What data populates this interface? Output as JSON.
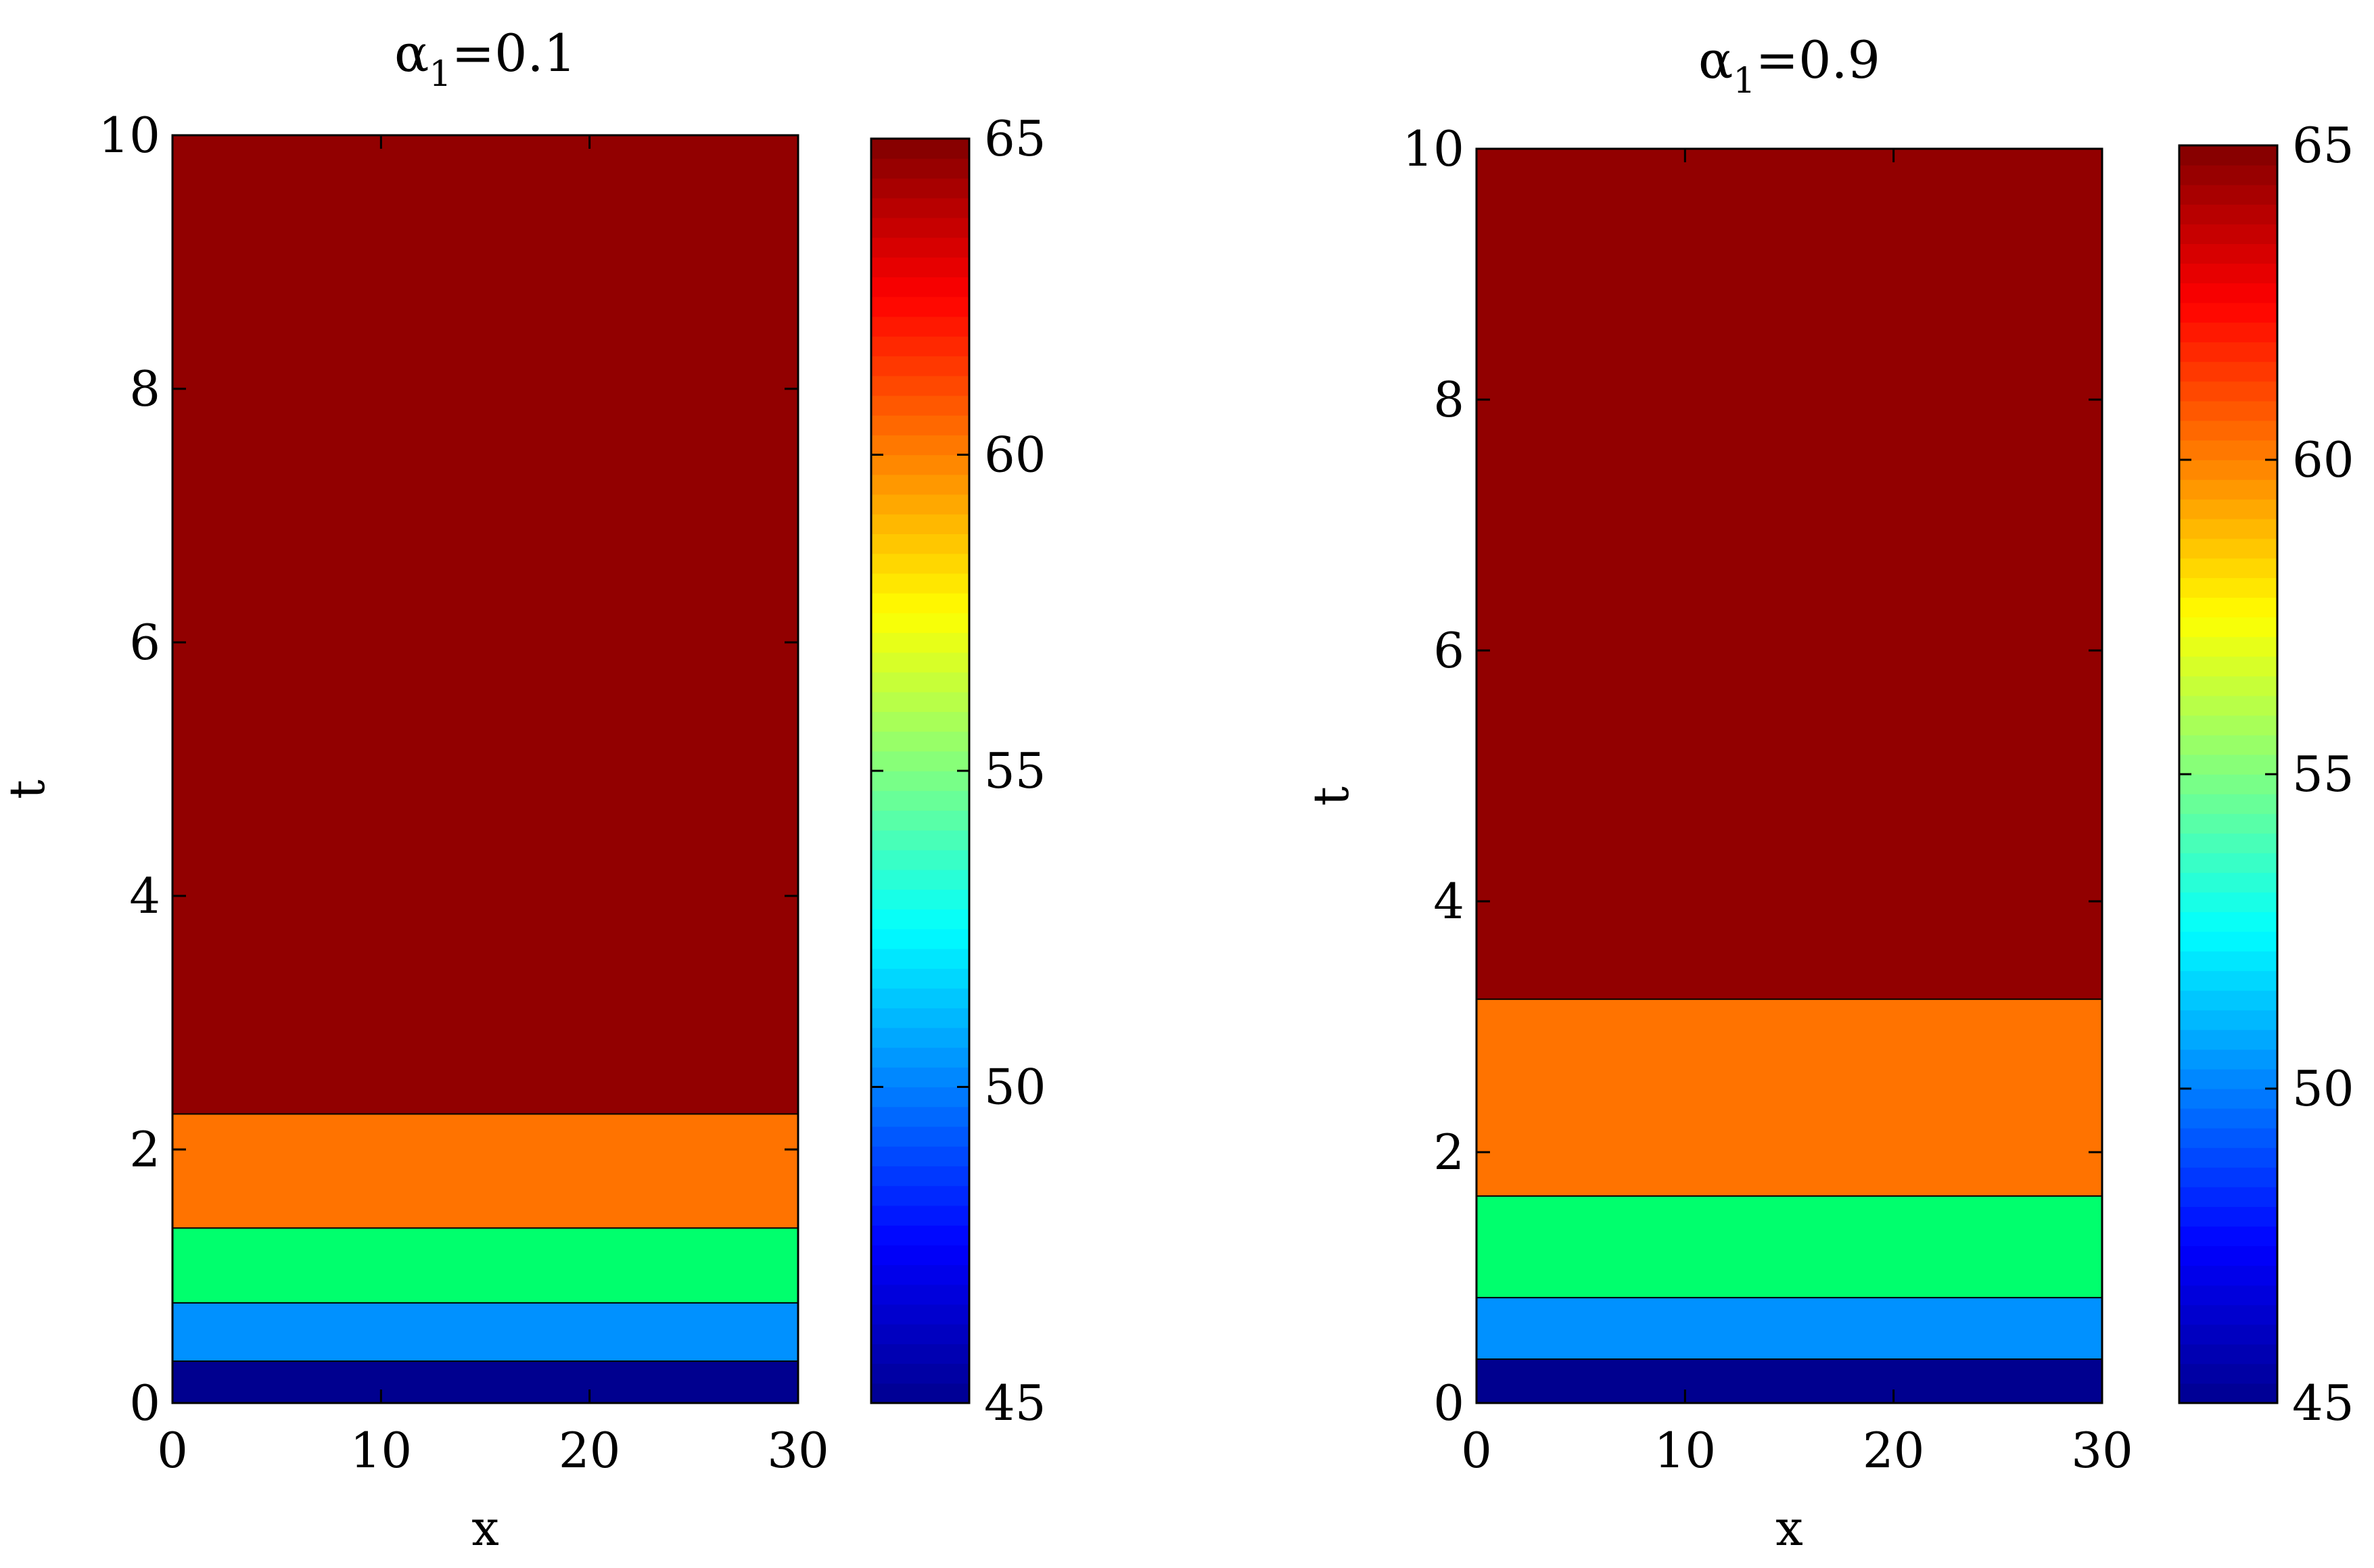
{
  "chart_data": [
    {
      "type": "heatmap",
      "subtype": "filled-contour",
      "title": "α1=0.1",
      "title_greek": "α",
      "title_subscript": "1",
      "title_rest": "=0.1",
      "xlabel": "x",
      "ylabel": "t",
      "xlim": [
        0,
        30
      ],
      "ylim": [
        0,
        10
      ],
      "xticks": [
        0,
        10,
        20,
        30
      ],
      "yticks": [
        0,
        2,
        4,
        6,
        8,
        10
      ],
      "bands": [
        {
          "t_from": 0.0,
          "t_to": 0.33,
          "value": 46,
          "color": "#00008F"
        },
        {
          "t_from": 0.33,
          "t_to": 0.79,
          "value": 50.6,
          "color": "#0091FF"
        },
        {
          "t_from": 0.79,
          "t_to": 1.38,
          "value": 55.2,
          "color": "#00FF6D"
        },
        {
          "t_from": 1.38,
          "t_to": 2.28,
          "value": 60.5,
          "color": "#FF7300"
        },
        {
          "t_from": 2.28,
          "t_to": 10.0,
          "value": 65,
          "color": "#920000"
        }
      ],
      "colorbar": {
        "min": 45,
        "max": 65,
        "ticks": [
          45,
          50,
          55,
          60,
          65
        ]
      }
    },
    {
      "type": "heatmap",
      "subtype": "filled-contour",
      "title": "α1=0.9",
      "title_greek": "α",
      "title_subscript": "1",
      "title_rest": "=0.9",
      "xlabel": "x",
      "ylabel": "t",
      "xlim": [
        0,
        30
      ],
      "ylim": [
        0,
        10
      ],
      "xticks": [
        0,
        10,
        20,
        30
      ],
      "yticks": [
        0,
        2,
        4,
        6,
        8,
        10
      ],
      "bands": [
        {
          "t_from": 0.0,
          "t_to": 0.35,
          "value": 46,
          "color": "#00008F"
        },
        {
          "t_from": 0.35,
          "t_to": 0.84,
          "value": 50.6,
          "color": "#0091FF"
        },
        {
          "t_from": 0.84,
          "t_to": 1.65,
          "value": 55.2,
          "color": "#00FF6D"
        },
        {
          "t_from": 1.65,
          "t_to": 3.22,
          "value": 60.5,
          "color": "#FF7300"
        },
        {
          "t_from": 3.22,
          "t_to": 10.0,
          "value": 65,
          "color": "#920000"
        }
      ],
      "colorbar": {
        "min": 45,
        "max": 65,
        "ticks": [
          45,
          50,
          55,
          60,
          65
        ]
      }
    }
  ],
  "colormap": [
    "#00008F",
    "#0000FF",
    "#0080FF",
    "#00FFFF",
    "#80FF80",
    "#FFFF00",
    "#FF8000",
    "#FF0000",
    "#800000"
  ]
}
